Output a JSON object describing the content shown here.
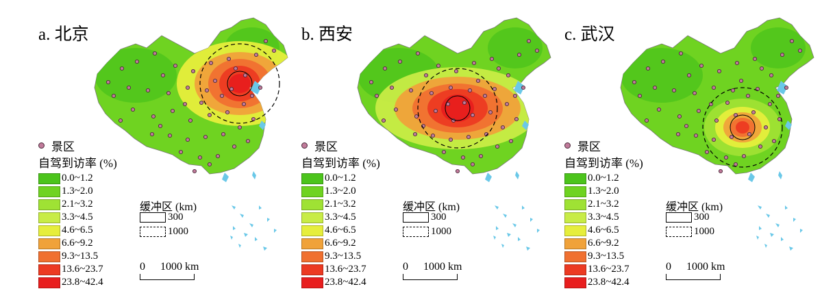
{
  "panels": [
    {
      "title": "a. 北京",
      "hotspot": "beijing"
    },
    {
      "title": "b. 西安",
      "hotspot": "xian"
    },
    {
      "title": "c. 武汉",
      "hotspot": "wuhan"
    }
  ],
  "legend": {
    "poi_label": "景区",
    "rate_title": "自驾到访率 (%)",
    "classes": [
      {
        "label": "0.0~1.2",
        "color": "#4cc41c"
      },
      {
        "label": "1.3~2.0",
        "color": "#6fd321"
      },
      {
        "label": "2.1~3.2",
        "color": "#9fe234"
      },
      {
        "label": "3.3~4.5",
        "color": "#c8ec46"
      },
      {
        "label": "4.6~6.5",
        "color": "#e6ee3c"
      },
      {
        "label": "6.6~9.2",
        "color": "#f0a23a"
      },
      {
        "label": "9.3~13.5",
        "color": "#f07030"
      },
      {
        "label": "13.6~23.7",
        "color": "#ec3a22"
      },
      {
        "label": "23.8~42.4",
        "color": "#e81e1e"
      }
    ]
  },
  "buffer": {
    "title": "缓冲区 (km)",
    "items": [
      {
        "label": "300",
        "style": "solid"
      },
      {
        "label": "1000",
        "style": "dashed"
      }
    ]
  },
  "scale": {
    "zero": "0",
    "max": "1000 km"
  },
  "colors": {
    "sea": "#6ac8e8",
    "poi_fill": "#c07a9a",
    "poi_stroke": "#4a2a3a"
  }
}
